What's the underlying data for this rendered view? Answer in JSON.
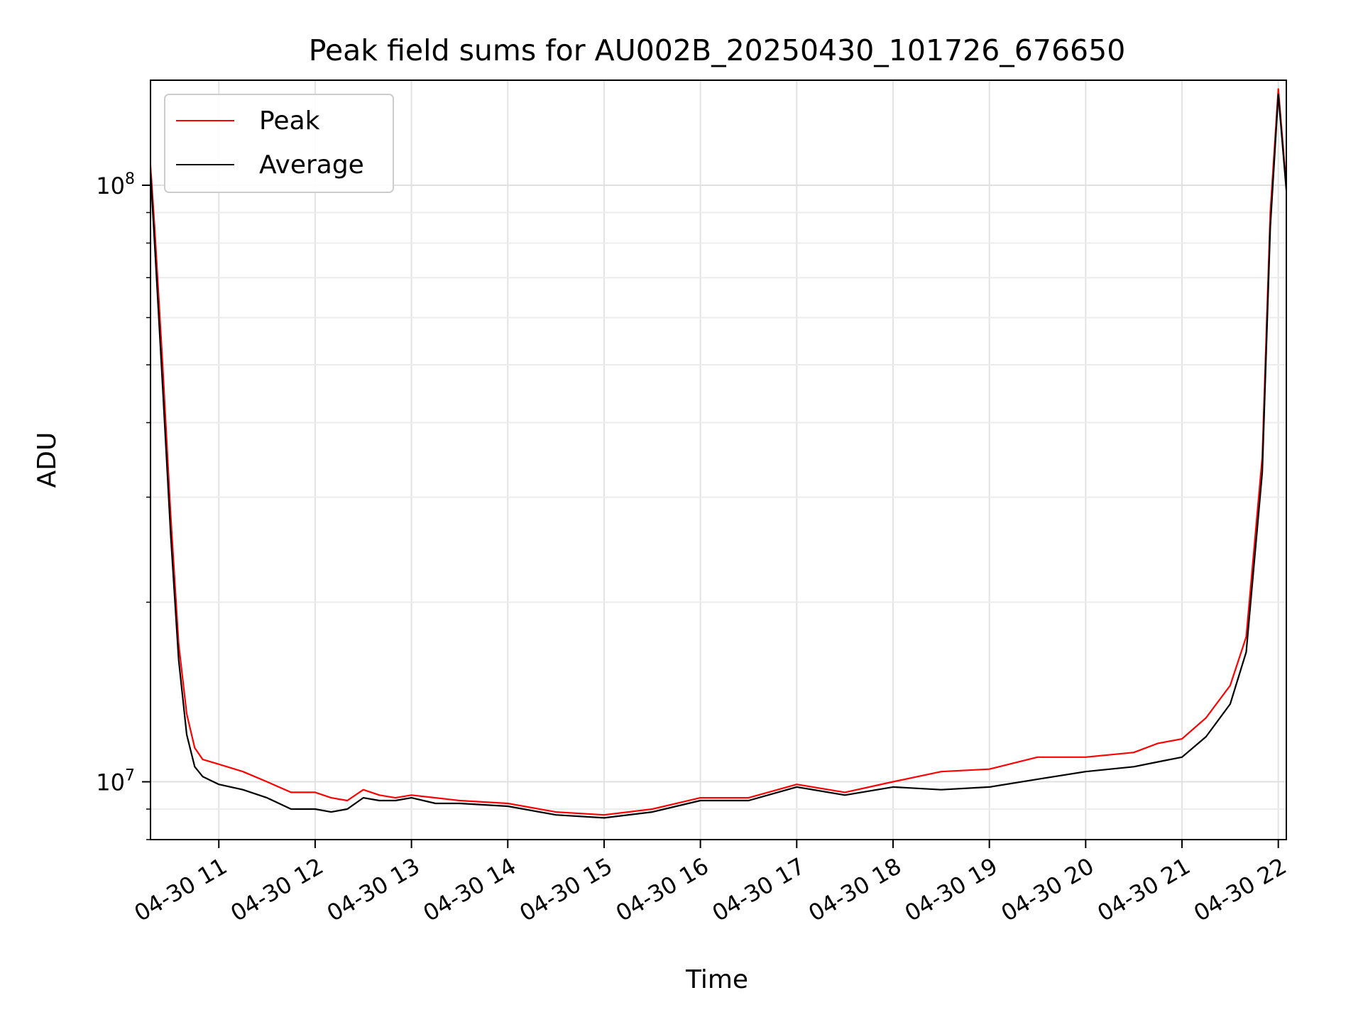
{
  "chart_data": {
    "type": "line",
    "title": "Peak field sums for AU002B_20250430_101726_676650",
    "xlabel": "Time",
    "ylabel": "ADU",
    "y_scale": "log",
    "xlim": [
      "2025-04-30T10:17:26",
      "2025-04-30T22:05:00"
    ],
    "ylim": [
      8000000,
      150000000
    ],
    "grid": true,
    "legend": {
      "placement": "upper left"
    },
    "x_ticks": [
      {
        "t": "2025-04-30T11:00",
        "label": "04-30 11"
      },
      {
        "t": "2025-04-30T12:00",
        "label": "04-30 12"
      },
      {
        "t": "2025-04-30T13:00",
        "label": "04-30 13"
      },
      {
        "t": "2025-04-30T14:00",
        "label": "04-30 14"
      },
      {
        "t": "2025-04-30T15:00",
        "label": "04-30 15"
      },
      {
        "t": "2025-04-30T16:00",
        "label": "04-30 16"
      },
      {
        "t": "2025-04-30T17:00",
        "label": "04-30 17"
      },
      {
        "t": "2025-04-30T18:00",
        "label": "04-30 18"
      },
      {
        "t": "2025-04-30T19:00",
        "label": "04-30 19"
      },
      {
        "t": "2025-04-30T20:00",
        "label": "04-30 20"
      },
      {
        "t": "2025-04-30T21:00",
        "label": "04-30 21"
      },
      {
        "t": "2025-04-30T22:00",
        "label": "04-30 22"
      }
    ],
    "y_major_ticks": [
      {
        "value": 10000000,
        "base": "10",
        "exp": "7"
      },
      {
        "value": 100000000,
        "base": "10",
        "exp": "8"
      }
    ],
    "x": [
      "2025-04-30T10:17:26",
      "2025-04-30T10:20",
      "2025-04-30T10:25",
      "2025-04-30T10:30",
      "2025-04-30T10:35",
      "2025-04-30T10:40",
      "2025-04-30T10:45",
      "2025-04-30T10:50",
      "2025-04-30T11:00",
      "2025-04-30T11:15",
      "2025-04-30T11:30",
      "2025-04-30T11:45",
      "2025-04-30T12:00",
      "2025-04-30T12:10",
      "2025-04-30T12:20",
      "2025-04-30T12:30",
      "2025-04-30T12:40",
      "2025-04-30T12:50",
      "2025-04-30T13:00",
      "2025-04-30T13:15",
      "2025-04-30T13:30",
      "2025-04-30T14:00",
      "2025-04-30T14:30",
      "2025-04-30T15:00",
      "2025-04-30T15:30",
      "2025-04-30T16:00",
      "2025-04-30T16:30",
      "2025-04-30T17:00",
      "2025-04-30T17:30",
      "2025-04-30T18:00",
      "2025-04-30T18:30",
      "2025-04-30T19:00",
      "2025-04-30T19:30",
      "2025-04-30T20:00",
      "2025-04-30T20:30",
      "2025-04-30T20:45",
      "2025-04-30T21:00",
      "2025-04-30T21:15",
      "2025-04-30T21:30",
      "2025-04-30T21:40",
      "2025-04-30T21:50",
      "2025-04-30T21:55",
      "2025-04-30T22:00",
      "2025-04-30T22:05"
    ],
    "series": [
      {
        "name": "Peak",
        "color": "#ff0000",
        "values": [
          108000000,
          85000000,
          50000000,
          28000000,
          17000000,
          13000000,
          11400000,
          10900000,
          10700000,
          10400000,
          10000000,
          9600000,
          9600000,
          9400000,
          9300000,
          9700000,
          9500000,
          9400000,
          9500000,
          9400000,
          9300000,
          9200000,
          8900000,
          8800000,
          9000000,
          9400000,
          9400000,
          9900000,
          9600000,
          10000000,
          10400000,
          10500000,
          11000000,
          11000000,
          11200000,
          11600000,
          11800000,
          12800000,
          14500000,
          17500000,
          35000000,
          90000000,
          145000000,
          100000000
        ]
      },
      {
        "name": "Average",
        "color": "#000000",
        "values": [
          105000000,
          80000000,
          46000000,
          26000000,
          16000000,
          12000000,
          10600000,
          10200000,
          9900000,
          9700000,
          9400000,
          9000000,
          9000000,
          8900000,
          9000000,
          9400000,
          9300000,
          9300000,
          9400000,
          9200000,
          9200000,
          9100000,
          8800000,
          8700000,
          8900000,
          9300000,
          9300000,
          9800000,
          9500000,
          9800000,
          9700000,
          9800000,
          10100000,
          10400000,
          10600000,
          10800000,
          11000000,
          11900000,
          13500000,
          16500000,
          33000000,
          85000000,
          142000000,
          98000000
        ]
      }
    ]
  }
}
